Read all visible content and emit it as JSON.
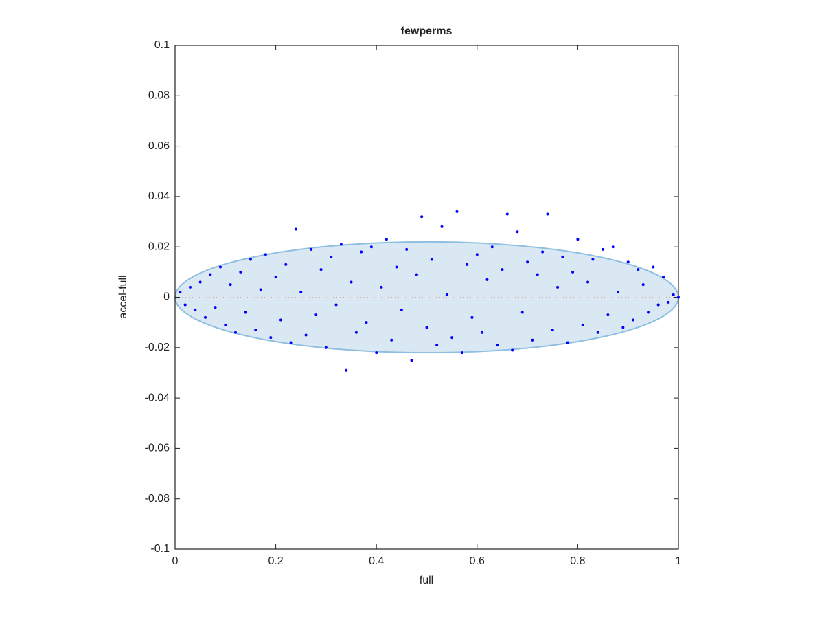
{
  "chart_data": {
    "type": "scatter",
    "title": "fewperms",
    "x_label": "full",
    "y_label": "accel-full",
    "xlim": [
      0,
      1
    ],
    "ylim": [
      -0.1,
      0.1
    ],
    "xticks": [
      0,
      0.2,
      0.4,
      0.6,
      0.8,
      1
    ],
    "yticks": [
      -0.1,
      -0.08,
      -0.06,
      -0.04,
      -0.02,
      0,
      0.02,
      0.04,
      0.06,
      0.08,
      0.1
    ],
    "grid": false,
    "ellipse": {
      "center": [
        0.5,
        0
      ],
      "radii": [
        0.5,
        0.022
      ],
      "color": "#cfe2f0",
      "edge_color": "#8fbfe0"
    },
    "reference_line": {
      "x": [
        0,
        1
      ],
      "y": [
        0,
        0
      ],
      "color": "#e8a090"
    },
    "series": [
      {
        "color": "#0000ff",
        "x": [
          0.01,
          0.02,
          0.03,
          0.04,
          0.05,
          0.06,
          0.07,
          0.08,
          0.09,
          0.1,
          0.11,
          0.12,
          0.13,
          0.14,
          0.15,
          0.16,
          0.17,
          0.18,
          0.19,
          0.2,
          0.21,
          0.22,
          0.23,
          0.24,
          0.25,
          0.26,
          0.27,
          0.28,
          0.29,
          0.3,
          0.31,
          0.32,
          0.33,
          0.34,
          0.35,
          0.36,
          0.37,
          0.38,
          0.39,
          0.4,
          0.41,
          0.42,
          0.43,
          0.44,
          0.45,
          0.46,
          0.47,
          0.48,
          0.49,
          0.5,
          0.51,
          0.52,
          0.53,
          0.54,
          0.55,
          0.56,
          0.57,
          0.58,
          0.59,
          0.6,
          0.61,
          0.62,
          0.63,
          0.64,
          0.65,
          0.66,
          0.67,
          0.68,
          0.69,
          0.7,
          0.71,
          0.72,
          0.73,
          0.74,
          0.75,
          0.76,
          0.77,
          0.78,
          0.79,
          0.8,
          0.81,
          0.82,
          0.83,
          0.84,
          0.85,
          0.86,
          0.87,
          0.88,
          0.89,
          0.9,
          0.91,
          0.92,
          0.93,
          0.94,
          0.95,
          0.96,
          0.97,
          0.98,
          0.99,
          1.0
        ],
        "y": [
          0.002,
          -0.003,
          0.004,
          -0.005,
          0.006,
          -0.008,
          0.009,
          -0.004,
          0.012,
          -0.011,
          0.005,
          -0.014,
          0.01,
          -0.006,
          0.015,
          -0.013,
          0.003,
          0.017,
          -0.016,
          0.008,
          -0.009,
          0.013,
          -0.018,
          0.027,
          0.002,
          -0.015,
          0.019,
          -0.007,
          0.011,
          -0.02,
          0.016,
          -0.003,
          0.021,
          -0.029,
          0.006,
          -0.014,
          0.018,
          -0.01,
          0.02,
          -0.022,
          0.004,
          0.023,
          -0.017,
          0.012,
          -0.005,
          0.019,
          -0.025,
          0.009,
          0.032,
          -0.012,
          0.015,
          -0.019,
          0.028,
          0.001,
          -0.016,
          0.034,
          -0.022,
          0.013,
          -0.008,
          0.017,
          -0.014,
          0.007,
          0.02,
          -0.019,
          0.011,
          0.033,
          -0.021,
          0.026,
          -0.006,
          0.014,
          -0.017,
          0.009,
          0.018,
          0.033,
          -0.013,
          0.004,
          0.016,
          -0.018,
          0.01,
          0.023,
          -0.011,
          0.006,
          0.015,
          -0.014,
          0.019,
          -0.007,
          0.02,
          0.002,
          -0.012,
          0.014,
          -0.009,
          0.011,
          0.005,
          -0.006,
          0.012,
          -0.003,
          0.008,
          -0.002,
          0.001,
          0.0
        ]
      }
    ]
  }
}
